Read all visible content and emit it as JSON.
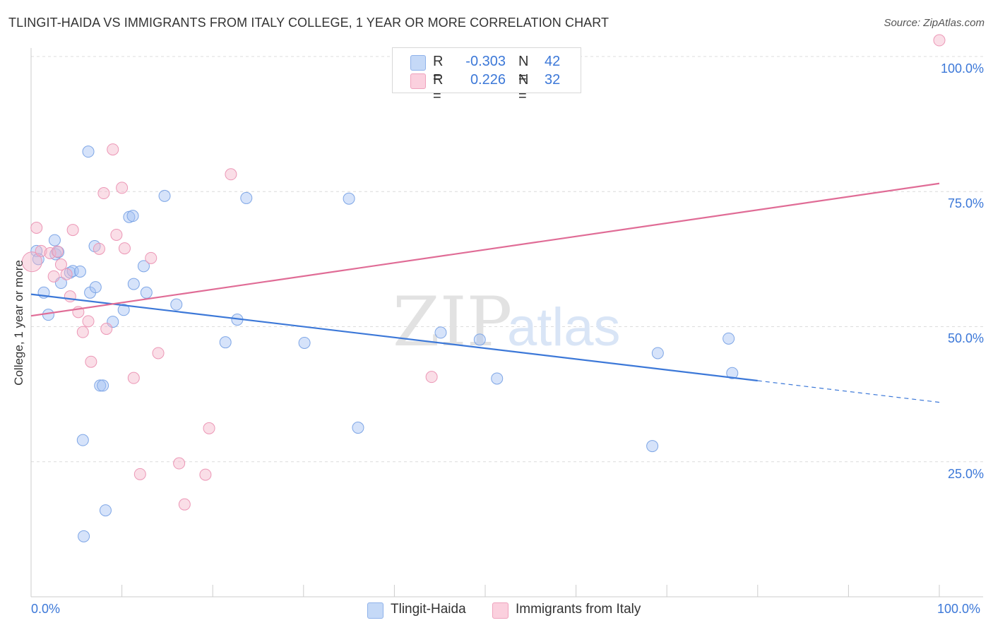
{
  "chart_data": {
    "type": "scatter",
    "title": "TLINGIT-HAIDA VS IMMIGRANTS FROM ITALY COLLEGE, 1 YEAR OR MORE CORRELATION CHART",
    "source": "Source: ZipAtlas.com",
    "ylabel": "College, 1 year or more",
    "xlabel": "",
    "xlim": [
      0,
      100
    ],
    "ylim": [
      0,
      100
    ],
    "y_ticks": [
      {
        "value": 25,
        "label": "25.0%"
      },
      {
        "value": 50,
        "label": "50.0%"
      },
      {
        "value": 75,
        "label": "75.0%"
      },
      {
        "value": 100,
        "label": "100.0%"
      }
    ],
    "x_ticks": [
      {
        "value": 0,
        "label": "0.0%"
      },
      {
        "value": 100,
        "label": "100.0%"
      }
    ],
    "watermark": {
      "part1": "ZIP",
      "part2": "atlas"
    },
    "legend_top": [
      {
        "r_label": "R =",
        "r_value": "-0.303",
        "n_label": "N =",
        "n_value": "42"
      },
      {
        "r_label": "R =",
        "r_value": "0.226",
        "n_label": "N =",
        "n_value": "32"
      }
    ],
    "series": [
      {
        "name": "Tlingit-Haida",
        "color": "#a4c2f4",
        "line_color": "#3c78d8",
        "trend": {
          "x0": 0,
          "y0": 56.0,
          "x1": 80,
          "y1": 40.0,
          "dash_to_x": 100,
          "dash_to_y": 36.0
        },
        "points": [
          [
            0.6,
            64.0
          ],
          [
            0.8,
            62.5
          ],
          [
            1.4,
            56.3
          ],
          [
            1.9,
            52.2
          ],
          [
            2.6,
            66.0
          ],
          [
            3.3,
            58.1
          ],
          [
            2.7,
            63.4
          ],
          [
            3.0,
            63.8
          ],
          [
            4.3,
            60.0
          ],
          [
            4.6,
            60.3
          ],
          [
            5.7,
            29.0
          ],
          [
            5.4,
            60.2
          ],
          [
            5.8,
            11.2
          ],
          [
            6.5,
            56.3
          ],
          [
            6.3,
            82.4
          ],
          [
            7.0,
            64.9
          ],
          [
            7.1,
            57.3
          ],
          [
            7.6,
            39.1
          ],
          [
            7.9,
            39.1
          ],
          [
            8.2,
            16.0
          ],
          [
            9.0,
            50.9
          ],
          [
            10.2,
            53.1
          ],
          [
            10.8,
            70.3
          ],
          [
            11.2,
            70.5
          ],
          [
            11.3,
            57.9
          ],
          [
            12.4,
            61.2
          ],
          [
            12.7,
            56.3
          ],
          [
            14.7,
            74.2
          ],
          [
            16.0,
            54.1
          ],
          [
            21.4,
            47.1
          ],
          [
            22.7,
            51.3
          ],
          [
            23.7,
            73.8
          ],
          [
            30.1,
            47.0
          ],
          [
            35.0,
            73.7
          ],
          [
            36.0,
            31.3
          ],
          [
            45.1,
            48.9
          ],
          [
            49.4,
            47.6
          ],
          [
            51.3,
            40.4
          ],
          [
            69.0,
            45.1
          ],
          [
            68.4,
            27.9
          ],
          [
            76.8,
            47.8
          ],
          [
            77.2,
            41.4
          ]
        ]
      },
      {
        "name": "Immigrants from Italy",
        "color": "#f4b5c9",
        "line_color": "#e06c96",
        "trend": {
          "x0": 0,
          "y0": 52.0,
          "x1": 100,
          "y1": 76.5
        },
        "points": [
          [
            0.1,
            62.0
          ],
          [
            0.6,
            68.3
          ],
          [
            1.1,
            64.0
          ],
          [
            2.1,
            63.6
          ],
          [
            2.5,
            59.3
          ],
          [
            2.9,
            63.9
          ],
          [
            3.3,
            61.5
          ],
          [
            3.9,
            59.7
          ],
          [
            4.3,
            55.6
          ],
          [
            4.6,
            67.9
          ],
          [
            5.2,
            52.7
          ],
          [
            5.7,
            49.0
          ],
          [
            6.3,
            51.0
          ],
          [
            6.6,
            43.5
          ],
          [
            7.5,
            64.4
          ],
          [
            8.0,
            74.7
          ],
          [
            8.3,
            49.6
          ],
          [
            9.0,
            82.8
          ],
          [
            9.4,
            67.0
          ],
          [
            10.0,
            75.7
          ],
          [
            10.3,
            64.5
          ],
          [
            11.3,
            40.5
          ],
          [
            12.0,
            22.7
          ],
          [
            13.2,
            62.7
          ],
          [
            14.0,
            45.1
          ],
          [
            16.3,
            24.7
          ],
          [
            16.9,
            17.1
          ],
          [
            19.2,
            22.6
          ],
          [
            19.6,
            31.2
          ],
          [
            22.0,
            78.2
          ],
          [
            44.1,
            40.7
          ],
          [
            100.0,
            103.0
          ]
        ]
      }
    ]
  }
}
